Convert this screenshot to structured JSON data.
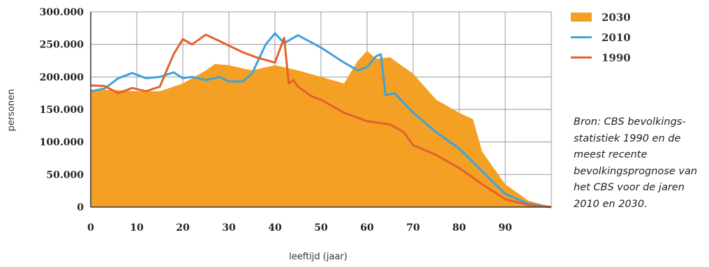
{
  "colors": {
    "area_2030": "#F4A024",
    "line_2010": "#3FA3DA",
    "line_1990": "#E4602C",
    "grid": "#9a9a9a"
  },
  "chart_data": {
    "type": "area",
    "title": "",
    "xlabel": "leeftijd (jaar)",
    "ylabel": "personen",
    "xlim": [
      0,
      100
    ],
    "ylim": [
      0,
      300000
    ],
    "x_ticks": [
      0,
      10,
      20,
      30,
      40,
      50,
      60,
      70,
      80,
      90
    ],
    "x_tick_labels": [
      "0",
      "10",
      "20",
      "30",
      "40",
      "50",
      "60",
      "70",
      "80",
      "90"
    ],
    "y_ticks": [
      0,
      50000,
      100000,
      150000,
      200000,
      250000,
      300000
    ],
    "y_tick_labels": [
      "0",
      "50.000",
      "100.000",
      "150.000",
      "200.000",
      "250.000",
      "300.000"
    ],
    "grid": true,
    "legend_position": "top-right",
    "series": [
      {
        "name": "2030",
        "type": "area",
        "x": [
          0,
          5,
          10,
          15,
          20,
          25,
          27,
          30,
          35,
          40,
          45,
          50,
          55,
          58,
          60,
          62,
          65,
          70,
          75,
          80,
          83,
          85,
          90,
          95,
          100
        ],
        "values": [
          180000,
          180000,
          178000,
          178000,
          190000,
          210000,
          220000,
          218000,
          210000,
          218000,
          210000,
          200000,
          190000,
          225000,
          240000,
          228000,
          230000,
          205000,
          165000,
          145000,
          135000,
          85000,
          35000,
          10000,
          0
        ]
      },
      {
        "name": "2010",
        "type": "line",
        "x": [
          0,
          3,
          6,
          9,
          12,
          15,
          18,
          20,
          22,
          25,
          28,
          30,
          33,
          35,
          38,
          40,
          42,
          45,
          50,
          55,
          58,
          60,
          62,
          63,
          64,
          66,
          70,
          75,
          80,
          85,
          90,
          95,
          100
        ],
        "values": [
          178000,
          182000,
          198000,
          206000,
          198000,
          200000,
          207000,
          198000,
          200000,
          195000,
          200000,
          193000,
          193000,
          205000,
          250000,
          267000,
          252000,
          264000,
          245000,
          222000,
          210000,
          215000,
          232000,
          235000,
          172000,
          175000,
          145000,
          115000,
          90000,
          55000,
          20000,
          5000,
          0
        ]
      },
      {
        "name": "1990",
        "type": "line",
        "x": [
          0,
          3,
          6,
          9,
          12,
          15,
          18,
          20,
          22,
          25,
          28,
          30,
          33,
          36,
          40,
          42,
          43,
          44,
          45,
          48,
          50,
          55,
          60,
          65,
          68,
          70,
          75,
          80,
          85,
          90,
          95,
          100
        ],
        "values": [
          187000,
          186000,
          175000,
          183000,
          178000,
          185000,
          235000,
          258000,
          250000,
          265000,
          255000,
          248000,
          238000,
          230000,
          222000,
          260000,
          190000,
          195000,
          185000,
          170000,
          165000,
          145000,
          132000,
          127000,
          115000,
          95000,
          80000,
          60000,
          35000,
          12000,
          3000,
          0
        ]
      }
    ]
  },
  "legend": {
    "items": [
      {
        "label": "2030",
        "kind": "area",
        "color": "#F4A024"
      },
      {
        "label": "2010",
        "kind": "line",
        "color": "#3FA3DA"
      },
      {
        "label": "1990",
        "kind": "line",
        "color": "#E4602C"
      }
    ]
  },
  "source_note": "Bron: CBS bevolkings-statistiek 1990 en de meest recente bevolkingsprognose van het CBS voor de jaren 2010 en 2030."
}
